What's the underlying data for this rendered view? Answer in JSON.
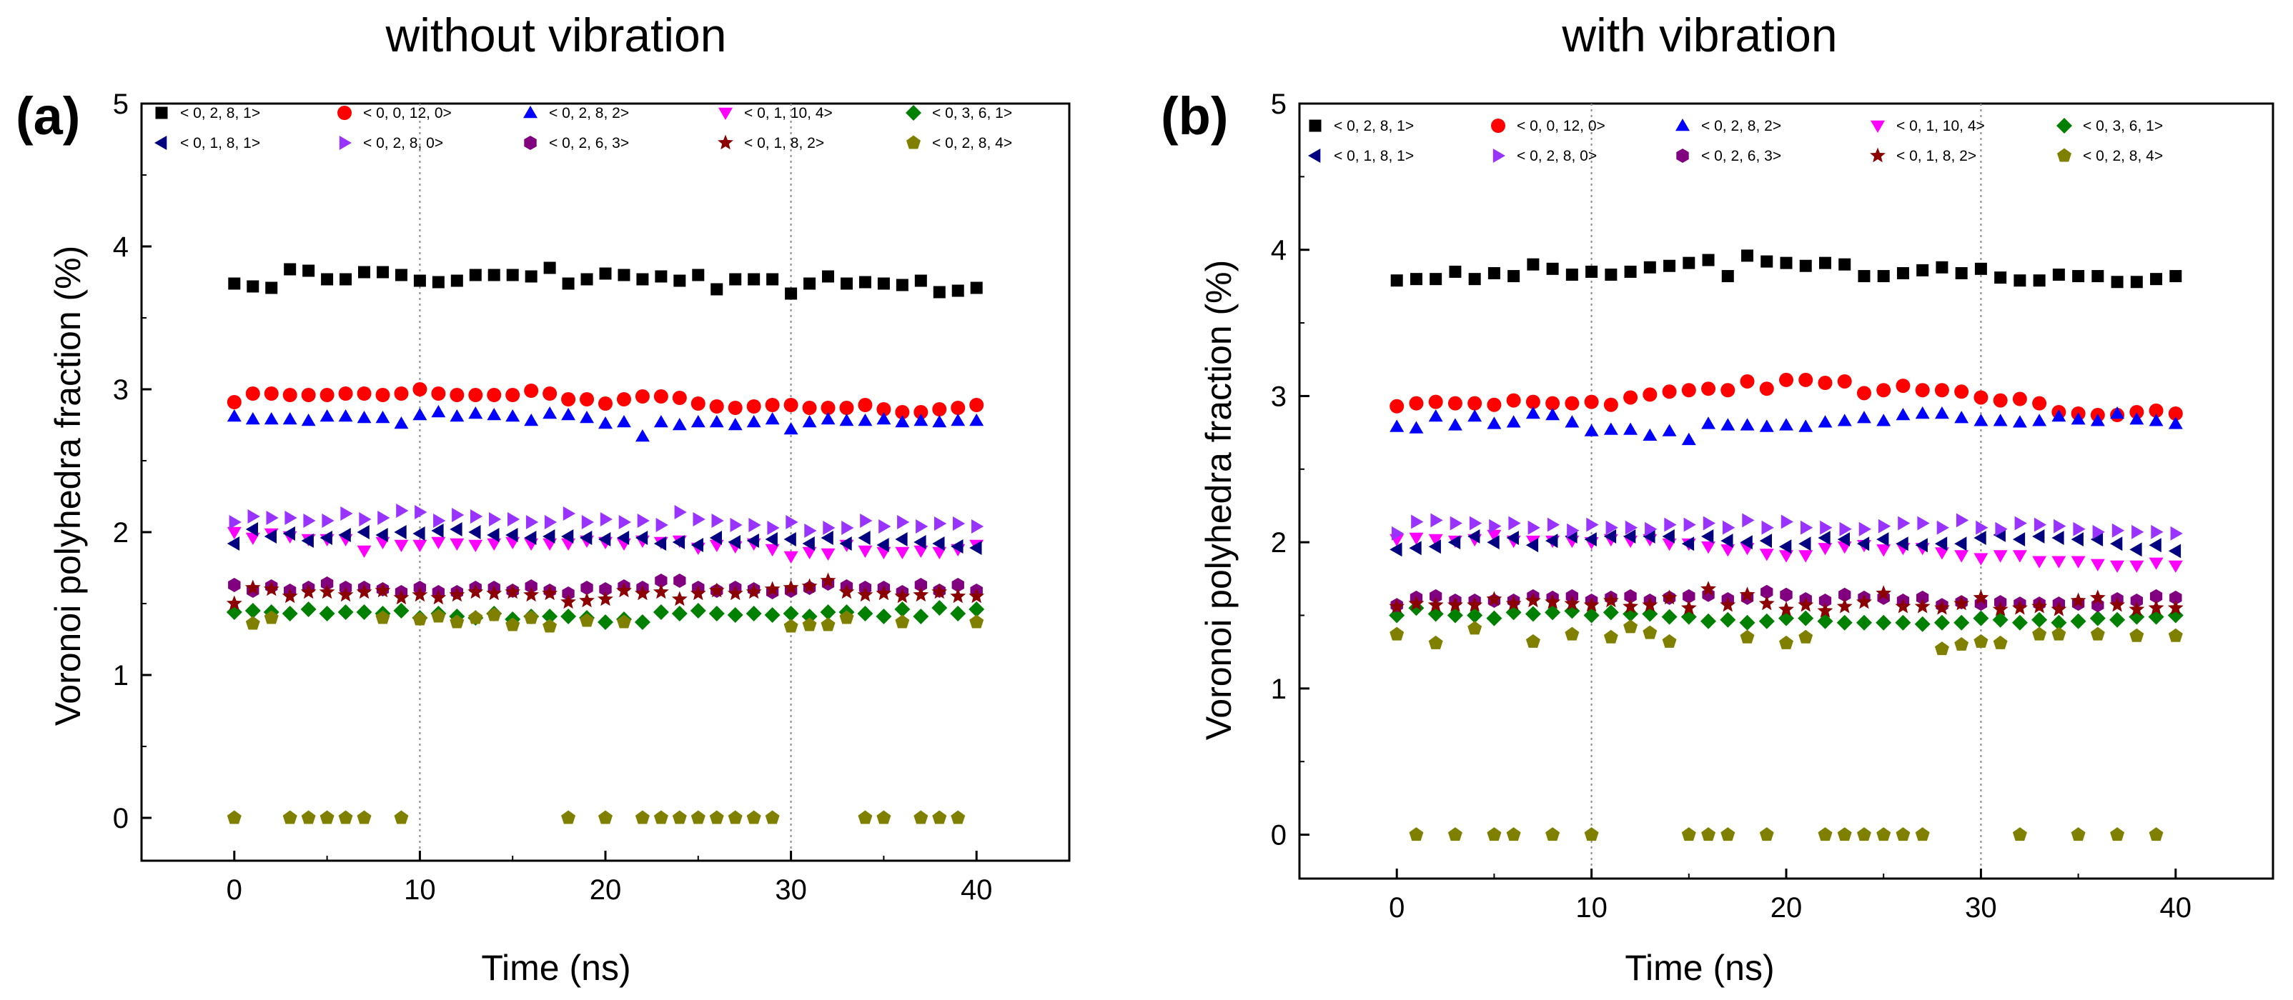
{
  "chart_data": [
    {
      "type": "scatter",
      "panel_label": "(a)",
      "title": "without vibration",
      "xlabel": "Time (ns)",
      "ylabel": "Voronoi polyhedra fraction (%)",
      "xlim": [
        -5,
        45
      ],
      "ylim": [
        -0.3,
        5
      ],
      "xticks": [
        0,
        10,
        20,
        30,
        40
      ],
      "yticks": [
        0,
        1,
        2,
        3,
        4,
        5
      ],
      "vlines": [
        10,
        30
      ],
      "x": [
        0,
        1,
        2,
        3,
        4,
        5,
        6,
        7,
        8,
        9,
        10,
        11,
        12,
        13,
        14,
        15,
        16,
        17,
        18,
        19,
        20,
        21,
        22,
        23,
        24,
        25,
        26,
        27,
        28,
        29,
        30,
        31,
        32,
        33,
        34,
        35,
        36,
        37,
        38,
        39,
        40
      ],
      "series": [
        {
          "name": "< 0, 2, 8, 1>",
          "color": "#000000",
          "marker": "square",
          "values": [
            3.74,
            3.72,
            3.71,
            3.84,
            3.83,
            3.77,
            3.77,
            3.82,
            3.82,
            3.8,
            3.76,
            3.75,
            3.76,
            3.8,
            3.8,
            3.8,
            3.79,
            3.85,
            3.74,
            3.77,
            3.81,
            3.8,
            3.77,
            3.79,
            3.76,
            3.8,
            3.7,
            3.77,
            3.77,
            3.77,
            3.67,
            3.74,
            3.79,
            3.74,
            3.75,
            3.74,
            3.73,
            3.76,
            3.68,
            3.69,
            3.71
          ]
        },
        {
          "name": "< 0, 0, 12, 0>",
          "color": "#ff0000",
          "marker": "circle",
          "values": [
            2.91,
            2.97,
            2.97,
            2.96,
            2.96,
            2.96,
            2.97,
            2.97,
            2.96,
            2.97,
            3.0,
            2.97,
            2.96,
            2.96,
            2.96,
            2.96,
            2.99,
            2.97,
            2.93,
            2.93,
            2.9,
            2.93,
            2.95,
            2.95,
            2.94,
            2.9,
            2.88,
            2.87,
            2.88,
            2.89,
            2.89,
            2.87,
            2.87,
            2.87,
            2.89,
            2.86,
            2.84,
            2.84,
            2.86,
            2.87,
            2.89
          ]
        },
        {
          "name": "< 0, 2, 8, 2>",
          "color": "#0000ff",
          "marker": "triangle-up",
          "values": [
            2.81,
            2.79,
            2.79,
            2.79,
            2.78,
            2.81,
            2.81,
            2.8,
            2.8,
            2.76,
            2.82,
            2.84,
            2.81,
            2.83,
            2.82,
            2.81,
            2.78,
            2.83,
            2.82,
            2.8,
            2.76,
            2.77,
            2.67,
            2.77,
            2.75,
            2.77,
            2.77,
            2.75,
            2.77,
            2.79,
            2.72,
            2.77,
            2.79,
            2.78,
            2.78,
            2.79,
            2.77,
            2.78,
            2.77,
            2.78,
            2.78
          ]
        },
        {
          "name": "< 0, 1, 10, 4>",
          "color": "#ff00ff",
          "marker": "triangle-down",
          "values": [
            2.0,
            1.96,
            1.99,
            1.97,
            1.95,
            1.95,
            1.95,
            1.87,
            1.93,
            1.91,
            1.91,
            1.93,
            1.92,
            1.91,
            1.92,
            1.93,
            1.92,
            1.92,
            1.92,
            1.94,
            1.93,
            1.92,
            1.94,
            1.93,
            1.94,
            1.89,
            1.91,
            1.9,
            1.92,
            1.88,
            1.83,
            1.86,
            1.85,
            1.91,
            1.87,
            1.86,
            1.86,
            1.87,
            1.86,
            1.88,
            1.91
          ]
        },
        {
          "name": "< 0, 3, 6, 1>",
          "color": "#008000",
          "marker": "diamond",
          "values": [
            1.44,
            1.45,
            1.44,
            1.43,
            1.46,
            1.43,
            1.44,
            1.44,
            1.43,
            1.45,
            1.4,
            1.43,
            1.41,
            1.4,
            1.43,
            1.39,
            1.41,
            1.41,
            1.41,
            1.4,
            1.37,
            1.39,
            1.37,
            1.44,
            1.43,
            1.45,
            1.43,
            1.42,
            1.43,
            1.42,
            1.43,
            1.41,
            1.44,
            1.44,
            1.43,
            1.41,
            1.46,
            1.41,
            1.47,
            1.43,
            1.46
          ]
        },
        {
          "name": "< 0, 1, 8, 1>",
          "color": "#000080",
          "marker": "triangle-left",
          "values": [
            1.92,
            2.02,
            1.97,
            1.99,
            1.94,
            1.96,
            1.98,
            2.0,
            1.98,
            2.0,
            1.99,
            2.01,
            2.02,
            2.0,
            1.98,
            1.98,
            1.96,
            1.97,
            1.97,
            1.96,
            1.95,
            1.96,
            1.96,
            1.92,
            1.93,
            1.91,
            1.96,
            1.93,
            1.94,
            1.95,
            1.95,
            1.92,
            1.96,
            1.92,
            1.96,
            1.91,
            1.95,
            1.93,
            1.92,
            1.9,
            1.89
          ]
        },
        {
          "name": "< 0, 2, 8, 0>",
          "color": "#9933ff",
          "marker": "triangle-right",
          "values": [
            2.07,
            2.11,
            2.1,
            2.1,
            2.08,
            2.08,
            2.13,
            2.09,
            2.1,
            2.15,
            2.14,
            2.08,
            2.12,
            2.11,
            2.09,
            2.09,
            2.07,
            2.07,
            2.13,
            2.07,
            2.09,
            2.07,
            2.08,
            2.05,
            2.14,
            2.09,
            2.08,
            2.05,
            2.05,
            2.03,
            2.07,
            2.01,
            2.03,
            2.03,
            2.08,
            2.04,
            2.07,
            2.04,
            2.06,
            2.06,
            2.04
          ]
        },
        {
          "name": "< 0, 2, 6, 3>",
          "color": "#800080",
          "marker": "hexagon",
          "values": [
            1.63,
            1.59,
            1.62,
            1.59,
            1.61,
            1.64,
            1.61,
            1.61,
            1.6,
            1.58,
            1.61,
            1.58,
            1.58,
            1.61,
            1.61,
            1.59,
            1.62,
            1.59,
            1.57,
            1.61,
            1.6,
            1.62,
            1.61,
            1.66,
            1.66,
            1.61,
            1.59,
            1.61,
            1.6,
            1.58,
            1.59,
            1.61,
            1.64,
            1.62,
            1.61,
            1.61,
            1.58,
            1.63,
            1.59,
            1.63,
            1.59
          ]
        },
        {
          "name": "< 0, 1, 8, 2>",
          "color": "#8b0000",
          "marker": "star",
          "values": [
            1.5,
            1.61,
            1.6,
            1.55,
            1.58,
            1.58,
            1.56,
            1.58,
            1.59,
            1.54,
            1.56,
            1.54,
            1.56,
            1.58,
            1.57,
            1.58,
            1.56,
            1.57,
            1.51,
            1.52,
            1.53,
            1.59,
            1.57,
            1.58,
            1.53,
            1.57,
            1.59,
            1.57,
            1.58,
            1.6,
            1.61,
            1.62,
            1.66,
            1.58,
            1.56,
            1.57,
            1.55,
            1.56,
            1.58,
            1.55,
            1.55
          ]
        },
        {
          "name": "< 0, 2, 8, 4>",
          "color": "#808000",
          "marker": "pentagon",
          "values": [
            0,
            1.36,
            1.4,
            0,
            0,
            0,
            0,
            0,
            1.4,
            0,
            1.39,
            1.41,
            1.37,
            1.4,
            1.42,
            1.35,
            1.4,
            1.34,
            0,
            1.38,
            0,
            1.37,
            0,
            0,
            0,
            0,
            0,
            0,
            0,
            0,
            1.34,
            1.35,
            1.35,
            1.4,
            0,
            0,
            1.37,
            0,
            0,
            0,
            1.37
          ]
        }
      ]
    },
    {
      "type": "scatter",
      "panel_label": "(b)",
      "title": "with vibration",
      "xlabel": "Time (ns)",
      "ylabel": "Voronoi polyhedra fraction (%)",
      "xlim": [
        -5,
        45
      ],
      "ylim": [
        -0.3,
        5
      ],
      "xticks": [
        0,
        10,
        20,
        30,
        40
      ],
      "yticks": [
        0,
        1,
        2,
        3,
        4,
        5
      ],
      "vlines": [
        10,
        30
      ],
      "x": [
        0,
        1,
        2,
        3,
        4,
        5,
        6,
        7,
        8,
        9,
        10,
        11,
        12,
        13,
        14,
        15,
        16,
        17,
        18,
        19,
        20,
        21,
        22,
        23,
        24,
        25,
        26,
        27,
        28,
        29,
        30,
        31,
        32,
        33,
        34,
        35,
        36,
        37,
        38,
        39,
        40
      ],
      "series": [
        {
          "name": "< 0, 2, 8, 1>",
          "color": "#000000",
          "marker": "square",
          "values": [
            3.79,
            3.8,
            3.8,
            3.85,
            3.8,
            3.84,
            3.82,
            3.9,
            3.87,
            3.83,
            3.85,
            3.83,
            3.85,
            3.88,
            3.89,
            3.91,
            3.93,
            3.82,
            3.96,
            3.92,
            3.91,
            3.89,
            3.91,
            3.9,
            3.82,
            3.82,
            3.84,
            3.86,
            3.88,
            3.84,
            3.87,
            3.81,
            3.79,
            3.79,
            3.83,
            3.82,
            3.82,
            3.78,
            3.78,
            3.8,
            3.82
          ]
        },
        {
          "name": "< 0, 0, 12, 0>",
          "color": "#ff0000",
          "marker": "circle",
          "values": [
            2.93,
            2.95,
            2.96,
            2.95,
            2.95,
            2.94,
            2.97,
            2.96,
            2.95,
            2.95,
            2.96,
            2.94,
            2.99,
            3.01,
            3.03,
            3.04,
            3.05,
            3.04,
            3.1,
            3.05,
            3.11,
            3.11,
            3.09,
            3.1,
            3.02,
            3.04,
            3.07,
            3.04,
            3.04,
            3.03,
            2.99,
            2.97,
            2.98,
            2.95,
            2.89,
            2.88,
            2.87,
            2.87,
            2.89,
            2.9,
            2.88
          ]
        },
        {
          "name": "< 0, 2, 8, 2>",
          "color": "#0000ff",
          "marker": "triangle-up",
          "values": [
            2.79,
            2.78,
            2.86,
            2.8,
            2.86,
            2.81,
            2.82,
            2.88,
            2.87,
            2.82,
            2.76,
            2.77,
            2.77,
            2.73,
            2.76,
            2.7,
            2.81,
            2.8,
            2.8,
            2.79,
            2.8,
            2.79,
            2.82,
            2.83,
            2.85,
            2.83,
            2.87,
            2.88,
            2.88,
            2.85,
            2.83,
            2.83,
            2.82,
            2.83,
            2.86,
            2.84,
            2.83,
            2.88,
            2.84,
            2.83,
            2.81
          ]
        },
        {
          "name": "< 0, 1, 10, 4>",
          "color": "#ff00ff",
          "marker": "triangle-down",
          "values": [
            2.02,
            2.03,
            2.02,
            2.01,
            2.02,
            2.05,
            2.01,
            2.01,
            2.01,
            2.01,
            2.0,
            2.02,
            2.01,
            2.02,
            1.99,
            1.99,
            1.97,
            1.95,
            1.96,
            1.92,
            1.91,
            1.91,
            1.96,
            1.97,
            1.98,
            1.95,
            1.96,
            1.96,
            1.93,
            1.91,
            1.89,
            1.91,
            1.91,
            1.87,
            1.87,
            1.87,
            1.85,
            1.84,
            1.84,
            1.86,
            1.84
          ]
        },
        {
          "name": "< 0, 3, 6, 1>",
          "color": "#008000",
          "marker": "diamond",
          "values": [
            1.5,
            1.55,
            1.51,
            1.5,
            1.5,
            1.48,
            1.52,
            1.51,
            1.52,
            1.53,
            1.5,
            1.52,
            1.51,
            1.51,
            1.49,
            1.49,
            1.46,
            1.47,
            1.45,
            1.46,
            1.48,
            1.48,
            1.46,
            1.45,
            1.45,
            1.45,
            1.45,
            1.44,
            1.45,
            1.45,
            1.48,
            1.47,
            1.45,
            1.47,
            1.45,
            1.46,
            1.48,
            1.47,
            1.49,
            1.49,
            1.5
          ]
        },
        {
          "name": "< 0, 1, 8, 1>",
          "color": "#000080",
          "marker": "triangle-left",
          "values": [
            1.95,
            1.96,
            1.97,
            2.0,
            2.04,
            2.0,
            2.03,
            1.98,
            2.01,
            2.04,
            2.02,
            2.04,
            2.04,
            2.04,
            2.04,
            1.99,
            2.04,
            2.01,
            2.0,
            2.01,
            1.97,
            1.99,
            2.03,
            2.02,
            1.99,
            2.02,
            1.99,
            1.98,
            1.99,
            1.99,
            2.03,
            2.05,
            2.02,
            2.04,
            2.03,
            2.02,
            2.02,
            1.99,
            1.95,
            1.98,
            1.94
          ]
        },
        {
          "name": "< 0, 2, 8, 0>",
          "color": "#9933ff",
          "marker": "triangle-right",
          "values": [
            2.06,
            2.14,
            2.15,
            2.13,
            2.13,
            2.11,
            2.13,
            2.1,
            2.12,
            2.08,
            2.12,
            2.1,
            2.1,
            2.09,
            2.12,
            2.12,
            2.13,
            2.1,
            2.15,
            2.1,
            2.14,
            2.1,
            2.1,
            2.09,
            2.09,
            2.11,
            2.13,
            2.13,
            2.1,
            2.15,
            2.1,
            2.09,
            2.13,
            2.12,
            2.11,
            2.09,
            2.07,
            2.08,
            2.07,
            2.07,
            2.06
          ]
        },
        {
          "name": "< 0, 2, 6, 3>",
          "color": "#800080",
          "marker": "hexagon",
          "values": [
            1.57,
            1.62,
            1.63,
            1.6,
            1.6,
            1.6,
            1.6,
            1.63,
            1.62,
            1.63,
            1.6,
            1.62,
            1.63,
            1.6,
            1.62,
            1.63,
            1.64,
            1.61,
            1.62,
            1.66,
            1.64,
            1.61,
            1.6,
            1.64,
            1.62,
            1.62,
            1.6,
            1.62,
            1.57,
            1.59,
            1.58,
            1.59,
            1.58,
            1.58,
            1.58,
            1.58,
            1.57,
            1.61,
            1.6,
            1.63,
            1.62
          ]
        },
        {
          "name": "< 0, 1, 8, 2>",
          "color": "#8b0000",
          "marker": "star",
          "values": [
            1.56,
            1.58,
            1.57,
            1.57,
            1.57,
            1.61,
            1.58,
            1.6,
            1.59,
            1.58,
            1.57,
            1.6,
            1.56,
            1.57,
            1.62,
            1.55,
            1.68,
            1.57,
            1.64,
            1.58,
            1.54,
            1.57,
            1.53,
            1.56,
            1.59,
            1.65,
            1.56,
            1.56,
            1.55,
            1.58,
            1.62,
            1.54,
            1.55,
            1.56,
            1.54,
            1.6,
            1.62,
            1.57,
            1.54,
            1.55,
            1.55
          ]
        },
        {
          "name": "< 0, 2, 8, 4>",
          "color": "#808000",
          "marker": "pentagon",
          "values": [
            1.37,
            0,
            1.31,
            0,
            1.41,
            0,
            0,
            1.32,
            0,
            1.37,
            0,
            1.35,
            1.42,
            1.38,
            1.32,
            0,
            0,
            0,
            1.35,
            0,
            1.31,
            1.35,
            0,
            0,
            0,
            0,
            0,
            0,
            1.27,
            1.3,
            1.32,
            1.31,
            0,
            1.37,
            1.37,
            0,
            1.37,
            0,
            1.36,
            0,
            1.36
          ]
        }
      ]
    }
  ]
}
